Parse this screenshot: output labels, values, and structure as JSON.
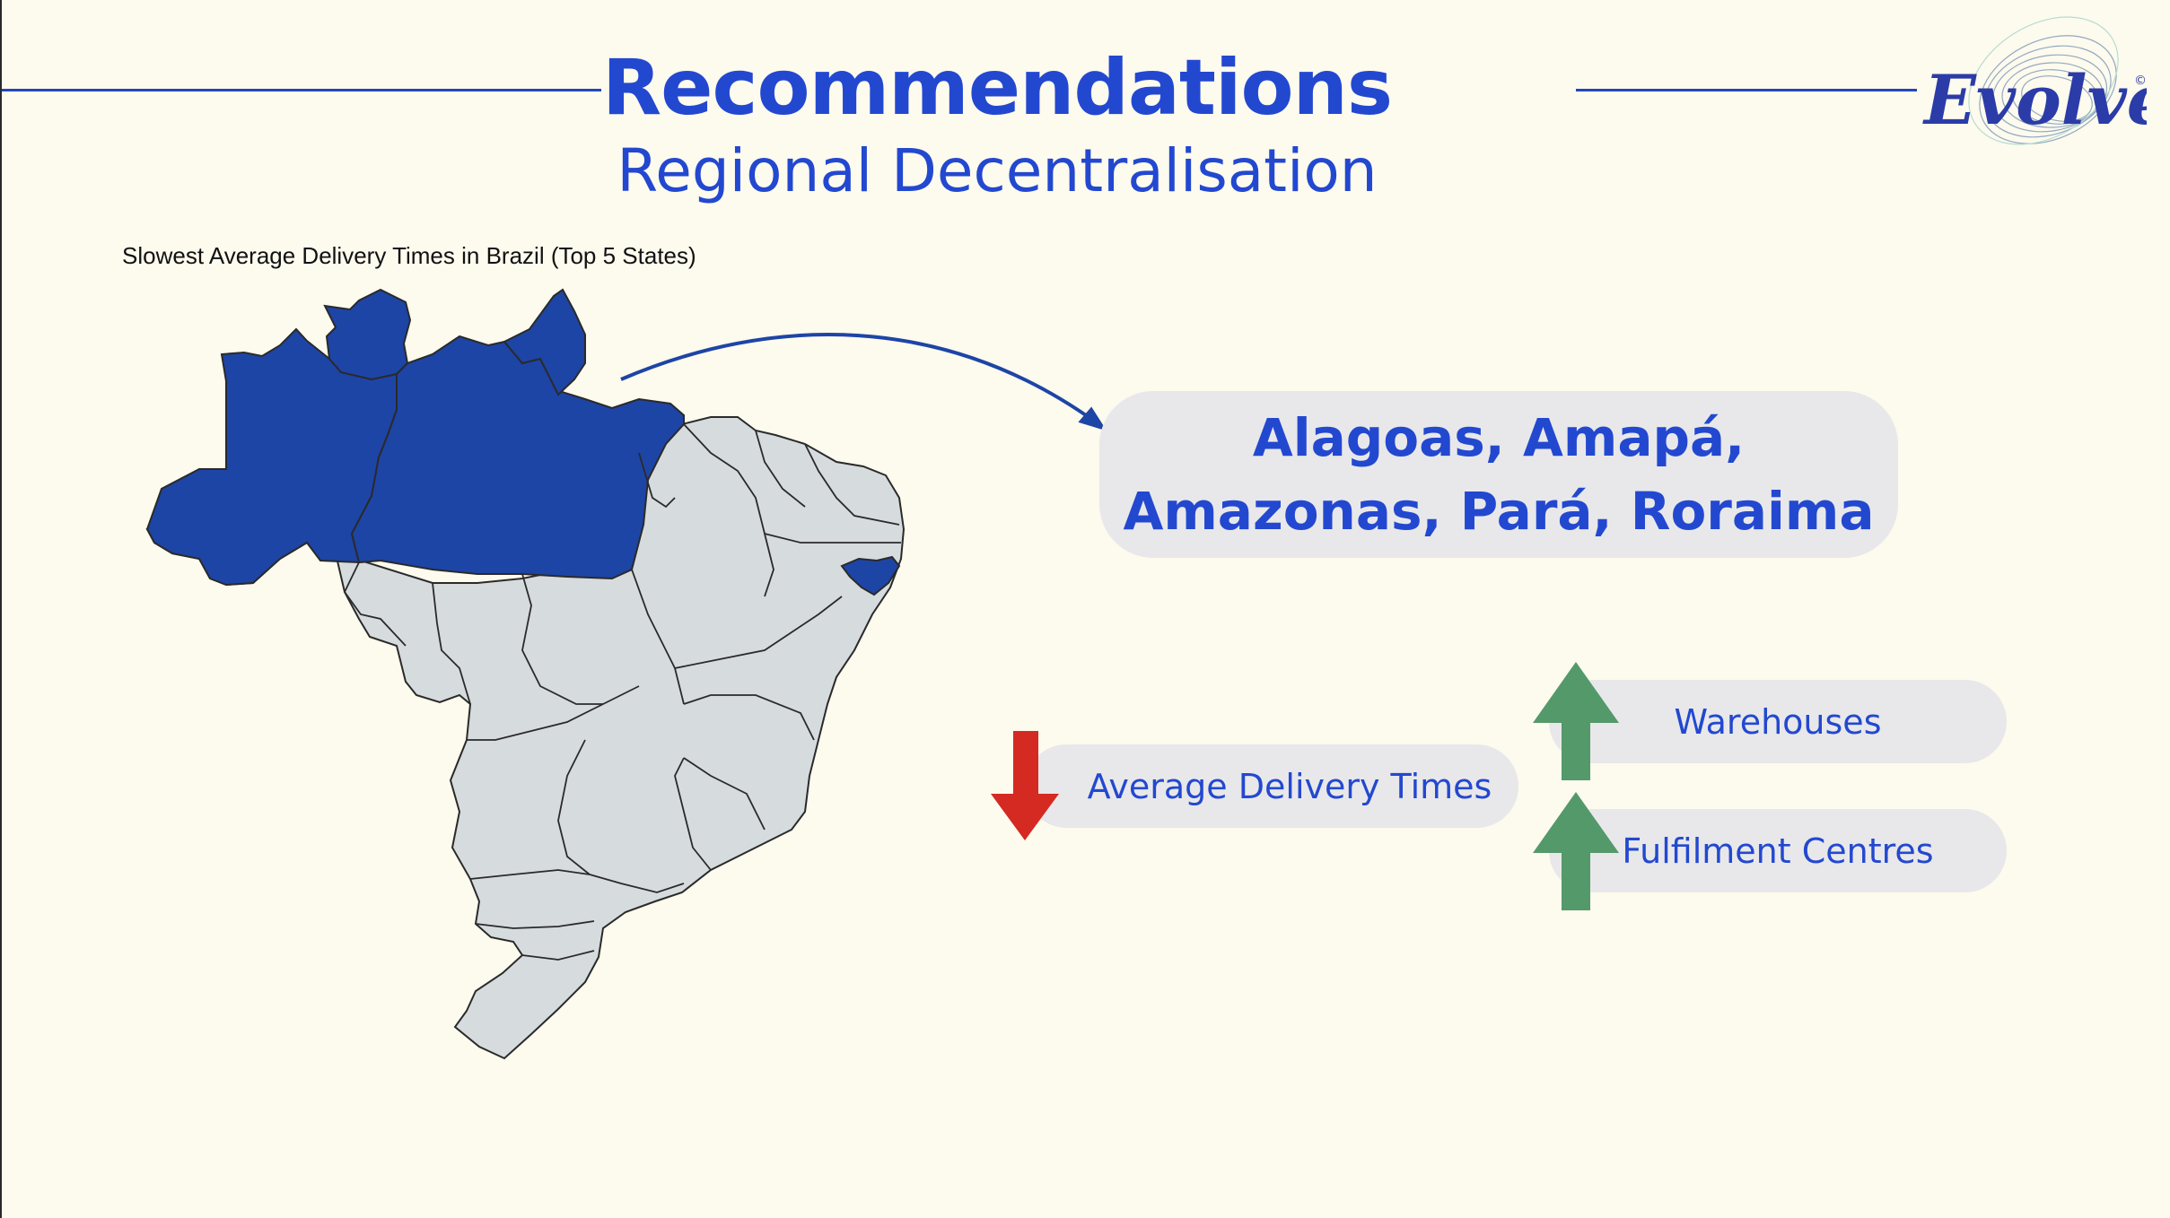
{
  "header": {
    "title": "Recommendations",
    "subtitle": "Regional Decentralisation",
    "logo_text": "Evolve",
    "logo_mark": "©"
  },
  "map": {
    "caption": "Slowest Average Delivery Times in Brazil (Top 5 States)",
    "highlight_color": "#1d45a6",
    "base_color": "#d6dbde",
    "highlighted_states": [
      "Alagoas",
      "Amapá",
      "Amazonas",
      "Pará",
      "Roraima"
    ]
  },
  "callout": {
    "line1": "Alagoas, Amapá,",
    "line2": "Amazonas, Pará, Roraima"
  },
  "indicators": [
    {
      "label": "Average Delivery Times",
      "direction": "down",
      "icon": "arrow-down-icon",
      "color": "#d42a22"
    },
    {
      "label": "Warehouses",
      "direction": "up",
      "icon": "arrow-up-icon",
      "color": "#54996a"
    },
    {
      "label": "Fulfilment Centres",
      "direction": "up",
      "icon": "arrow-up-icon",
      "color": "#54996a"
    }
  ],
  "colors": {
    "accent": "#2348d0",
    "background": "#fdfaee",
    "pill": "#e8e8ea"
  }
}
